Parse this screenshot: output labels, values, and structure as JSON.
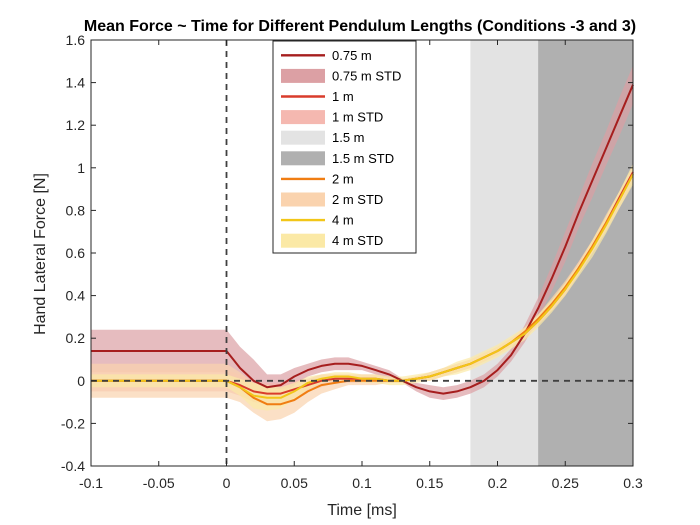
{
  "chart_data": {
    "type": "line",
    "title": "Mean Force ~ Time for Different Pendulum Lengths (Conditions -3 and 3)",
    "xlabel": "Time [ms]",
    "ylabel": "Hand Lateral Force [N]",
    "xlim": [
      -0.1,
      0.3
    ],
    "ylim": [
      -0.4,
      1.6
    ],
    "xticks": [
      -0.1,
      -0.05,
      0,
      0.05,
      0.1,
      0.15,
      0.2,
      0.25,
      0.3
    ],
    "xtick_labels": [
      "-0.1",
      "-0.05",
      "0",
      "0.05",
      "0.1",
      "0.15",
      "0.2",
      "0.25",
      "0.3"
    ],
    "yticks": [
      -0.4,
      -0.2,
      0,
      0.2,
      0.4,
      0.6,
      0.8,
      1,
      1.2,
      1.4,
      1.6
    ],
    "ytick_labels": [
      "-0.4",
      "-0.2",
      "0",
      "0.2",
      "0.4",
      "0.6",
      "0.8",
      "1",
      "1.2",
      "1.4",
      "1.6"
    ],
    "grid": false,
    "legend_position": "top-center",
    "reference_lines": [
      {
        "axis": "x",
        "value": 0,
        "style": "dashed"
      },
      {
        "axis": "y",
        "value": 0,
        "style": "dashed"
      }
    ],
    "regions": [
      {
        "name": "1.5 m",
        "x0": 0.18,
        "x1": 0.3,
        "color": "#e3e3e3"
      },
      {
        "name": "1.5 m STD",
        "x0": 0.23,
        "x1": 0.3,
        "color": "#b0b0b0"
      }
    ],
    "series": [
      {
        "name": "0.75 m",
        "std_name": "0.75 m STD",
        "color": "#a61e1e",
        "std_color": "#dca0a4",
        "x": [
          -0.1,
          0,
          0.005,
          0.01,
          0.015,
          0.02,
          0.03,
          0.04,
          0.05,
          0.06,
          0.07,
          0.08,
          0.09,
          0.1,
          0.11,
          0.12,
          0.13,
          0.14,
          0.15,
          0.16,
          0.17,
          0.18,
          0.19,
          0.2,
          0.21,
          0.22,
          0.23,
          0.24,
          0.25,
          0.26,
          0.27,
          0.28,
          0.29,
          0.3
        ],
        "y": [
          0.14,
          0.14,
          0.1,
          0.06,
          0.03,
          0.0,
          -0.03,
          -0.02,
          0.02,
          0.05,
          0.07,
          0.08,
          0.08,
          0.07,
          0.05,
          0.03,
          0.0,
          -0.03,
          -0.05,
          -0.06,
          -0.05,
          -0.03,
          0.0,
          0.05,
          0.12,
          0.22,
          0.34,
          0.48,
          0.63,
          0.79,
          0.94,
          1.09,
          1.24,
          1.39
        ],
        "std": [
          0.1,
          0.1,
          0.1,
          0.1,
          0.1,
          0.1,
          0.06,
          0.05,
          0.04,
          0.03,
          0.03,
          0.03,
          0.03,
          0.02,
          0.02,
          0.02,
          0.01,
          0.02,
          0.03,
          0.03,
          0.03,
          0.03,
          0.03,
          0.03,
          0.03,
          0.04,
          0.05,
          0.06,
          0.07,
          0.07,
          0.08,
          0.08,
          0.09,
          0.09
        ]
      },
      {
        "name": "1 m",
        "std_name": "1 m STD",
        "color": "#d93c2b",
        "std_color": "#f5b8b0",
        "x": [
          -0.1,
          0,
          0.01,
          0.02,
          0.03,
          0.04,
          0.05,
          0.06,
          0.07,
          0.08,
          0.09,
          0.1,
          0.11,
          0.12,
          0.13,
          0.14,
          0.15,
          0.16,
          0.17,
          0.18,
          0.19,
          0.2,
          0.21,
          0.22,
          0.23,
          0.24,
          0.25,
          0.26,
          0.27,
          0.28,
          0.29,
          0.3
        ],
        "y": [
          0.0,
          0.0,
          -0.02,
          -0.05,
          -0.06,
          -0.06,
          -0.04,
          -0.02,
          0.0,
          0.01,
          0.01,
          0.01,
          0.01,
          0.0,
          0.0,
          0.01,
          0.02,
          0.04,
          0.06,
          0.08,
          0.11,
          0.14,
          0.18,
          0.22,
          0.28,
          0.35,
          0.43,
          0.53,
          0.63,
          0.74,
          0.86,
          0.98
        ],
        "std": [
          0.05,
          0.05,
          0.05,
          0.05,
          0.05,
          0.05,
          0.04,
          0.03,
          0.03,
          0.02,
          0.02,
          0.02,
          0.02,
          0.01,
          0.01,
          0.01,
          0.02,
          0.02,
          0.02,
          0.02,
          0.02,
          0.02,
          0.02,
          0.02,
          0.02,
          0.02,
          0.03,
          0.03,
          0.03,
          0.03,
          0.03,
          0.03
        ]
      },
      {
        "name": "2 m",
        "std_name": "2 m STD",
        "color": "#f07d12",
        "std_color": "#fad3ae",
        "x": [
          -0.1,
          0,
          0.01,
          0.02,
          0.03,
          0.04,
          0.05,
          0.06,
          0.07,
          0.08,
          0.09,
          0.1,
          0.11,
          0.12,
          0.13,
          0.14,
          0.15,
          0.16,
          0.17,
          0.18,
          0.19,
          0.2,
          0.21,
          0.22,
          0.23,
          0.24,
          0.25,
          0.26,
          0.27,
          0.28,
          0.29,
          0.3
        ],
        "y": [
          0.0,
          0.0,
          -0.03,
          -0.08,
          -0.11,
          -0.11,
          -0.09,
          -0.05,
          -0.02,
          -0.01,
          0.0,
          0.0,
          0.0,
          0.0,
          0.0,
          0.01,
          0.02,
          0.04,
          0.06,
          0.08,
          0.11,
          0.14,
          0.18,
          0.23,
          0.29,
          0.36,
          0.44,
          0.53,
          0.63,
          0.74,
          0.85,
          0.97
        ],
        "std": [
          0.08,
          0.08,
          0.07,
          0.07,
          0.08,
          0.07,
          0.06,
          0.05,
          0.04,
          0.03,
          0.02,
          0.02,
          0.02,
          0.01,
          0.01,
          0.01,
          0.02,
          0.02,
          0.02,
          0.02,
          0.02,
          0.02,
          0.02,
          0.02,
          0.02,
          0.03,
          0.03,
          0.03,
          0.03,
          0.04,
          0.04,
          0.04
        ]
      },
      {
        "name": "4 m",
        "std_name": "4 m STD",
        "color": "#f2c618",
        "std_color": "#fbe9a6",
        "x": [
          -0.1,
          0,
          0.01,
          0.02,
          0.03,
          0.04,
          0.05,
          0.06,
          0.07,
          0.08,
          0.09,
          0.1,
          0.11,
          0.12,
          0.13,
          0.14,
          0.15,
          0.16,
          0.17,
          0.18,
          0.19,
          0.2,
          0.21,
          0.22,
          0.23,
          0.24,
          0.25,
          0.26,
          0.27,
          0.28,
          0.29,
          0.3
        ],
        "y": [
          0.0,
          0.0,
          -0.03,
          -0.07,
          -0.08,
          -0.08,
          -0.05,
          -0.01,
          0.01,
          0.02,
          0.02,
          0.01,
          0.01,
          0.0,
          0.0,
          0.01,
          0.02,
          0.04,
          0.06,
          0.08,
          0.11,
          0.14,
          0.18,
          0.22,
          0.28,
          0.35,
          0.43,
          0.52,
          0.62,
          0.73,
          0.85,
          0.97
        ],
        "std": [
          0.03,
          0.03,
          0.04,
          0.06,
          0.06,
          0.05,
          0.04,
          0.03,
          0.02,
          0.02,
          0.02,
          0.02,
          0.02,
          0.02,
          0.02,
          0.02,
          0.02,
          0.02,
          0.03,
          0.03,
          0.03,
          0.03,
          0.03,
          0.03,
          0.03,
          0.03,
          0.03,
          0.03,
          0.04,
          0.04,
          0.04,
          0.05
        ]
      }
    ],
    "legend": [
      {
        "label": "0.75 m",
        "kind": "line",
        "color": "#a61e1e"
      },
      {
        "label": "0.75 m STD",
        "kind": "patch",
        "color": "#dca0a4"
      },
      {
        "label": "1 m",
        "kind": "line",
        "color": "#d93c2b"
      },
      {
        "label": "1 m STD",
        "kind": "patch",
        "color": "#f5b8b0"
      },
      {
        "label": "1.5 m",
        "kind": "patch",
        "color": "#e3e3e3"
      },
      {
        "label": "1.5 m STD",
        "kind": "patch",
        "color": "#b0b0b0"
      },
      {
        "label": "2 m",
        "kind": "line",
        "color": "#f07d12"
      },
      {
        "label": "2 m STD",
        "kind": "patch",
        "color": "#fad3ae"
      },
      {
        "label": "4 m",
        "kind": "line",
        "color": "#f2c618"
      },
      {
        "label": "4 m STD",
        "kind": "patch",
        "color": "#fbe9a6"
      }
    ]
  }
}
